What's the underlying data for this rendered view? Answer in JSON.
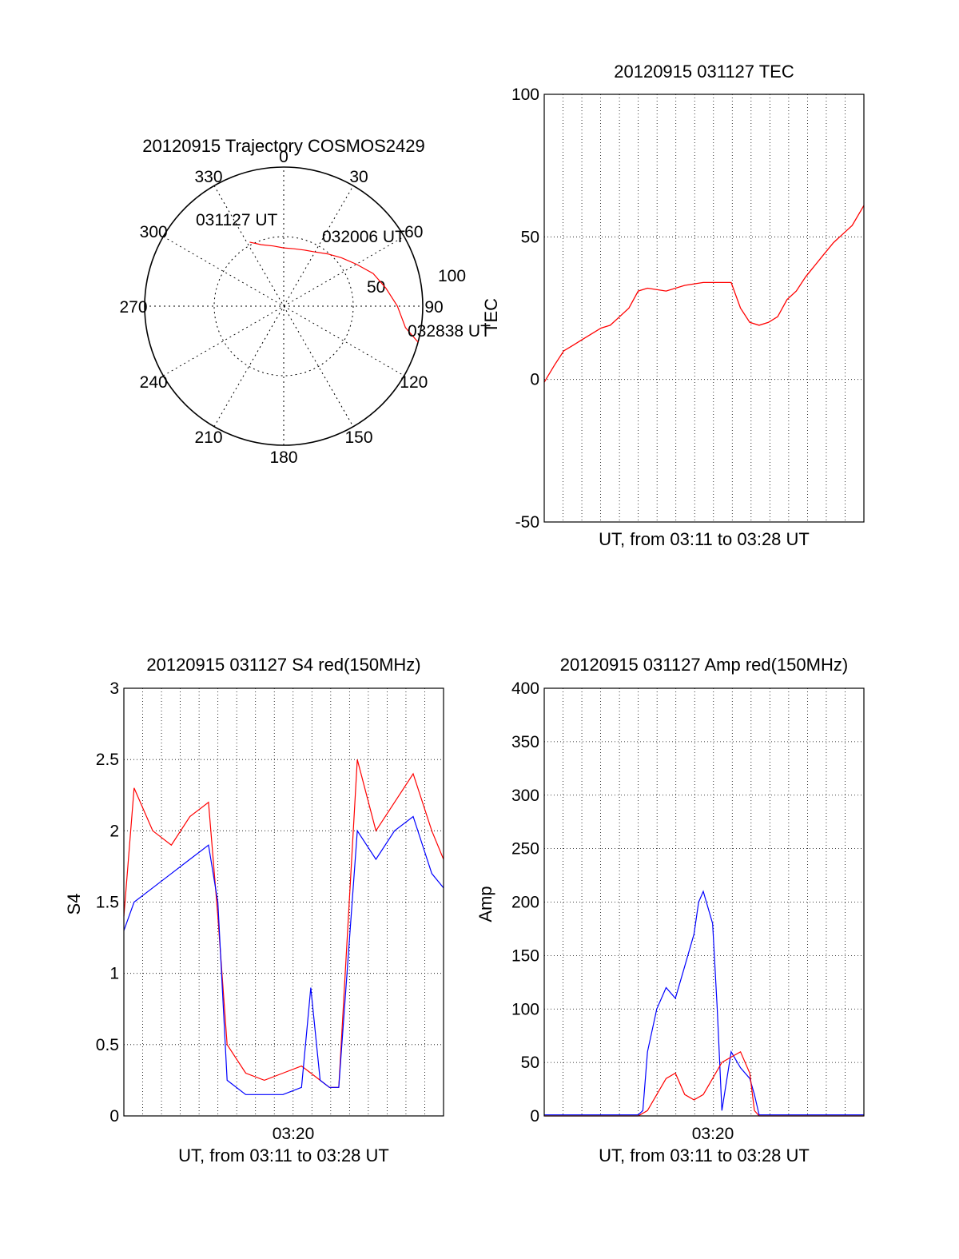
{
  "colors": {
    "red": "#ff0000",
    "blue": "#0000ff",
    "axis": "#000000",
    "grid": "#000000",
    "background": "#ffffff"
  },
  "chart_data": [
    {
      "type": "polar",
      "title": "20120915 Trajectory COSMOS2429",
      "azimuth_labels": [
        "0",
        "30",
        "60",
        "90",
        "120",
        "150",
        "180",
        "210",
        "240",
        "270",
        "300",
        "330"
      ],
      "radial_labels": [
        "50",
        "100"
      ],
      "series": [
        {
          "color": "red",
          "azimuth": [
            332,
            340,
            350,
            0,
            10,
            20,
            30,
            40,
            50,
            60,
            70,
            80,
            90,
            100,
            105
          ],
          "elevation": [
            39,
            44,
            47,
            49,
            49,
            48,
            46,
            42,
            37,
            31,
            23,
            17,
            10,
            3,
            0
          ]
        }
      ],
      "annotations": [
        "031127 UT",
        "032006 UT",
        "032838 UT"
      ],
      "grid": true
    },
    {
      "type": "line",
      "title": "20120915 031127 TEC",
      "xlabel": "UT, from 03:11 to 03:28 UT",
      "ylabel": "TEC",
      "ylim": [
        -50,
        100
      ],
      "yticks": [
        "-50",
        "0",
        "50",
        "100"
      ],
      "grid": true,
      "series": [
        {
          "color": "red",
          "x": [
            "03:11:27",
            "03:12:00",
            "03:12:30",
            "03:13:00",
            "03:13:30",
            "03:14:00",
            "03:14:30",
            "03:15:00",
            "03:15:30",
            "03:16:00",
            "03:16:30",
            "03:17:00",
            "03:18:00",
            "03:19:00",
            "03:20:00",
            "03:21:00",
            "03:21:30",
            "03:22:00",
            "03:22:30",
            "03:23:00",
            "03:23:30",
            "03:24:00",
            "03:24:30",
            "03:25:00",
            "03:25:30",
            "03:26:00",
            "03:26:30",
            "03:27:00",
            "03:27:30",
            "03:28:00",
            "03:28:38"
          ],
          "y": [
            -1,
            5,
            10,
            12,
            14,
            16,
            18,
            19,
            22,
            25,
            31,
            32,
            31,
            33,
            34,
            34,
            34,
            25,
            20,
            19,
            20,
            22,
            28,
            31,
            36,
            40,
            44,
            48,
            51,
            54,
            61
          ]
        }
      ]
    },
    {
      "type": "line",
      "title": "20120915 031127 S4 red(150MHz)",
      "xlabel": "UT, from 03:11 to 03:28 UT",
      "ylabel": "S4",
      "ylim": [
        0,
        3
      ],
      "yticks": [
        "0",
        "0.5",
        "1",
        "1.5",
        "2",
        "2.5",
        "3"
      ],
      "xticks": [
        "03:20"
      ],
      "grid": true,
      "series": [
        {
          "color": "red",
          "x": [
            "03:11:27",
            "03:12:00",
            "03:13:00",
            "03:14:00",
            "03:15:00",
            "03:16:00",
            "03:16:30",
            "03:17:00",
            "03:18:00",
            "03:19:00",
            "03:20:00",
            "03:21:00",
            "03:22:00",
            "03:22:30",
            "03:23:00",
            "03:24:00",
            "03:25:00",
            "03:26:00",
            "03:27:00",
            "03:28:00",
            "03:28:38"
          ],
          "y": [
            1.4,
            2.3,
            2.0,
            1.9,
            2.1,
            2.2,
            1.4,
            0.5,
            0.3,
            0.25,
            0.3,
            0.35,
            0.25,
            0.2,
            0.2,
            2.5,
            2.0,
            2.2,
            2.4,
            2.0,
            1.8
          ]
        },
        {
          "color": "blue",
          "x": [
            "03:11:27",
            "03:12:00",
            "03:13:00",
            "03:14:00",
            "03:15:00",
            "03:16:00",
            "03:16:30",
            "03:17:00",
            "03:18:00",
            "03:19:00",
            "03:20:00",
            "03:21:00",
            "03:21:30",
            "03:22:00",
            "03:22:30",
            "03:23:00",
            "03:24:00",
            "03:25:00",
            "03:26:00",
            "03:27:00",
            "03:28:00",
            "03:28:38"
          ],
          "y": [
            1.3,
            1.5,
            1.6,
            1.7,
            1.8,
            1.9,
            1.5,
            0.25,
            0.15,
            0.15,
            0.15,
            0.2,
            0.9,
            0.25,
            0.2,
            0.2,
            2.0,
            1.8,
            2.0,
            2.1,
            1.7,
            1.6
          ]
        }
      ]
    },
    {
      "type": "line",
      "title": "20120915 031127 Amp red(150MHz)",
      "xlabel": "UT, from 03:11 to 03:28 UT",
      "ylabel": "Amp",
      "ylim": [
        0,
        400
      ],
      "yticks": [
        "0",
        "50",
        "100",
        "150",
        "200",
        "250",
        "300",
        "350",
        "400"
      ],
      "xticks": [
        "03:20"
      ],
      "grid": true,
      "series": [
        {
          "color": "red",
          "x": [
            "03:11:27",
            "03:13:00",
            "03:15:00",
            "03:16:30",
            "03:17:00",
            "03:17:30",
            "03:18:00",
            "03:18:30",
            "03:19:00",
            "03:19:30",
            "03:20:00",
            "03:20:30",
            "03:21:00",
            "03:21:30",
            "03:22:00",
            "03:22:30",
            "03:22:45",
            "03:23:00",
            "03:25:00",
            "03:28:38"
          ],
          "y": [
            0,
            0,
            0,
            0,
            5,
            20,
            35,
            40,
            20,
            15,
            20,
            35,
            50,
            55,
            60,
            40,
            5,
            0,
            0,
            0
          ]
        },
        {
          "color": "blue",
          "x": [
            "03:11:27",
            "03:13:00",
            "03:15:00",
            "03:16:30",
            "03:16:45",
            "03:17:00",
            "03:17:30",
            "03:18:00",
            "03:18:30",
            "03:19:00",
            "03:19:30",
            "03:19:45",
            "03:20:00",
            "03:20:30",
            "03:20:45",
            "03:21:00",
            "03:21:30",
            "03:22:00",
            "03:22:30",
            "03:22:45",
            "03:23:00",
            "03:25:00",
            "03:28:38"
          ],
          "y": [
            1,
            1,
            1,
            1,
            5,
            60,
            100,
            120,
            110,
            140,
            170,
            200,
            210,
            180,
            100,
            5,
            60,
            45,
            35,
            20,
            1,
            1,
            1
          ]
        }
      ]
    }
  ]
}
